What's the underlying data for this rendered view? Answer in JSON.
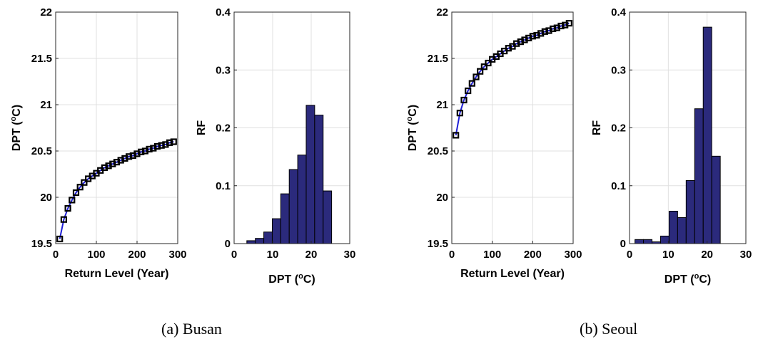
{
  "captions": [
    "(a) Busan",
    "(b) Seoul"
  ],
  "chart_data": [
    {
      "type": "line",
      "panel": "Busan return level",
      "xlabel": "Return Level (Year)",
      "ylabel_main": "DPT (",
      "ylabel_sup": "o",
      "ylabel_end": "C)",
      "xlim": [
        0,
        300
      ],
      "ylim": [
        19.5,
        22
      ],
      "xticks": [
        0,
        100,
        200,
        300
      ],
      "yticks": [
        19.5,
        20,
        20.5,
        21,
        21.5,
        22
      ],
      "ytick_labels": [
        "19.5",
        "20",
        "20.5",
        "21",
        "21.5",
        "22"
      ],
      "grid": true,
      "line_color": "#1f1fd6",
      "marker": "square",
      "x": [
        10,
        20,
        30,
        40,
        50,
        60,
        70,
        80,
        90,
        100,
        110,
        120,
        130,
        140,
        150,
        160,
        170,
        180,
        190,
        200,
        210,
        220,
        230,
        240,
        250,
        260,
        270,
        280,
        290
      ],
      "y": [
        19.55,
        19.76,
        19.88,
        19.97,
        20.05,
        20.11,
        20.16,
        20.2,
        20.23,
        20.26,
        20.29,
        20.32,
        20.34,
        20.36,
        20.38,
        20.4,
        20.42,
        20.44,
        20.45,
        20.47,
        20.49,
        20.5,
        20.52,
        20.53,
        20.55,
        20.56,
        20.57,
        20.59,
        20.6
      ]
    },
    {
      "type": "bar",
      "panel": "Busan histogram",
      "xlabel_main": "DPT (",
      "xlabel_sup": "o",
      "xlabel_end": "C)",
      "ylabel": "RF",
      "xlim": [
        0,
        30
      ],
      "ylim": [
        0,
        0.4
      ],
      "xticks": [
        0,
        10,
        20,
        30
      ],
      "yticks": [
        0,
        0.1,
        0.2,
        0.3,
        0.4
      ],
      "ytick_labels": [
        "0",
        "0.1",
        "0.2",
        "0.3",
        "0.4"
      ],
      "grid": true,
      "bar_color": "#2b2a7c",
      "bin_width": 2.2,
      "centers": [
        4.4,
        6.6,
        8.8,
        11.0,
        13.2,
        15.4,
        17.6,
        19.8,
        22.0,
        24.2
      ],
      "values": [
        0.005,
        0.009,
        0.02,
        0.043,
        0.086,
        0.128,
        0.153,
        0.239,
        0.222,
        0.091
      ]
    },
    {
      "type": "line",
      "panel": "Seoul return level",
      "xlabel": "Return Level (Year)",
      "ylabel_main": "DPT (",
      "ylabel_sup": "o",
      "ylabel_end": "C)",
      "xlim": [
        0,
        300
      ],
      "ylim": [
        19.5,
        22
      ],
      "xticks": [
        0,
        100,
        200,
        300
      ],
      "yticks": [
        19.5,
        20,
        20.5,
        21,
        21.5,
        22
      ],
      "ytick_labels": [
        "19.5",
        "20",
        "20.5",
        "21",
        "21.5",
        "22"
      ],
      "grid": true,
      "line_color": "#1f1fd6",
      "marker": "square",
      "x": [
        10,
        20,
        30,
        40,
        50,
        60,
        70,
        80,
        90,
        100,
        110,
        120,
        130,
        140,
        150,
        160,
        170,
        180,
        190,
        200,
        210,
        220,
        230,
        240,
        250,
        260,
        270,
        280,
        290
      ],
      "y": [
        20.67,
        20.91,
        21.05,
        21.15,
        21.23,
        21.3,
        21.36,
        21.41,
        21.45,
        21.49,
        21.52,
        21.55,
        21.58,
        21.61,
        21.63,
        21.66,
        21.68,
        21.7,
        21.72,
        21.74,
        21.75,
        21.77,
        21.79,
        21.8,
        21.82,
        21.83,
        21.85,
        21.86,
        21.88
      ]
    },
    {
      "type": "bar",
      "panel": "Seoul histogram",
      "xlabel_main": "DPT (",
      "xlabel_sup": "o",
      "xlabel_end": "C)",
      "ylabel": "RF",
      "xlim": [
        0,
        30
      ],
      "ylim": [
        0,
        0.4
      ],
      "xticks": [
        0,
        10,
        20,
        30
      ],
      "yticks": [
        0,
        0.1,
        0.2,
        0.3,
        0.4
      ],
      "ytick_labels": [
        "0",
        "0.1",
        "0.2",
        "0.3",
        "0.4"
      ],
      "grid": true,
      "bar_color": "#2b2a7c",
      "bin_width": 2.2,
      "centers": [
        2.5,
        4.7,
        6.9,
        9.1,
        11.3,
        13.5,
        15.7,
        17.9,
        20.1,
        22.3
      ],
      "values": [
        0.007,
        0.007,
        0.003,
        0.013,
        0.056,
        0.045,
        0.109,
        0.233,
        0.374,
        0.151
      ]
    }
  ]
}
